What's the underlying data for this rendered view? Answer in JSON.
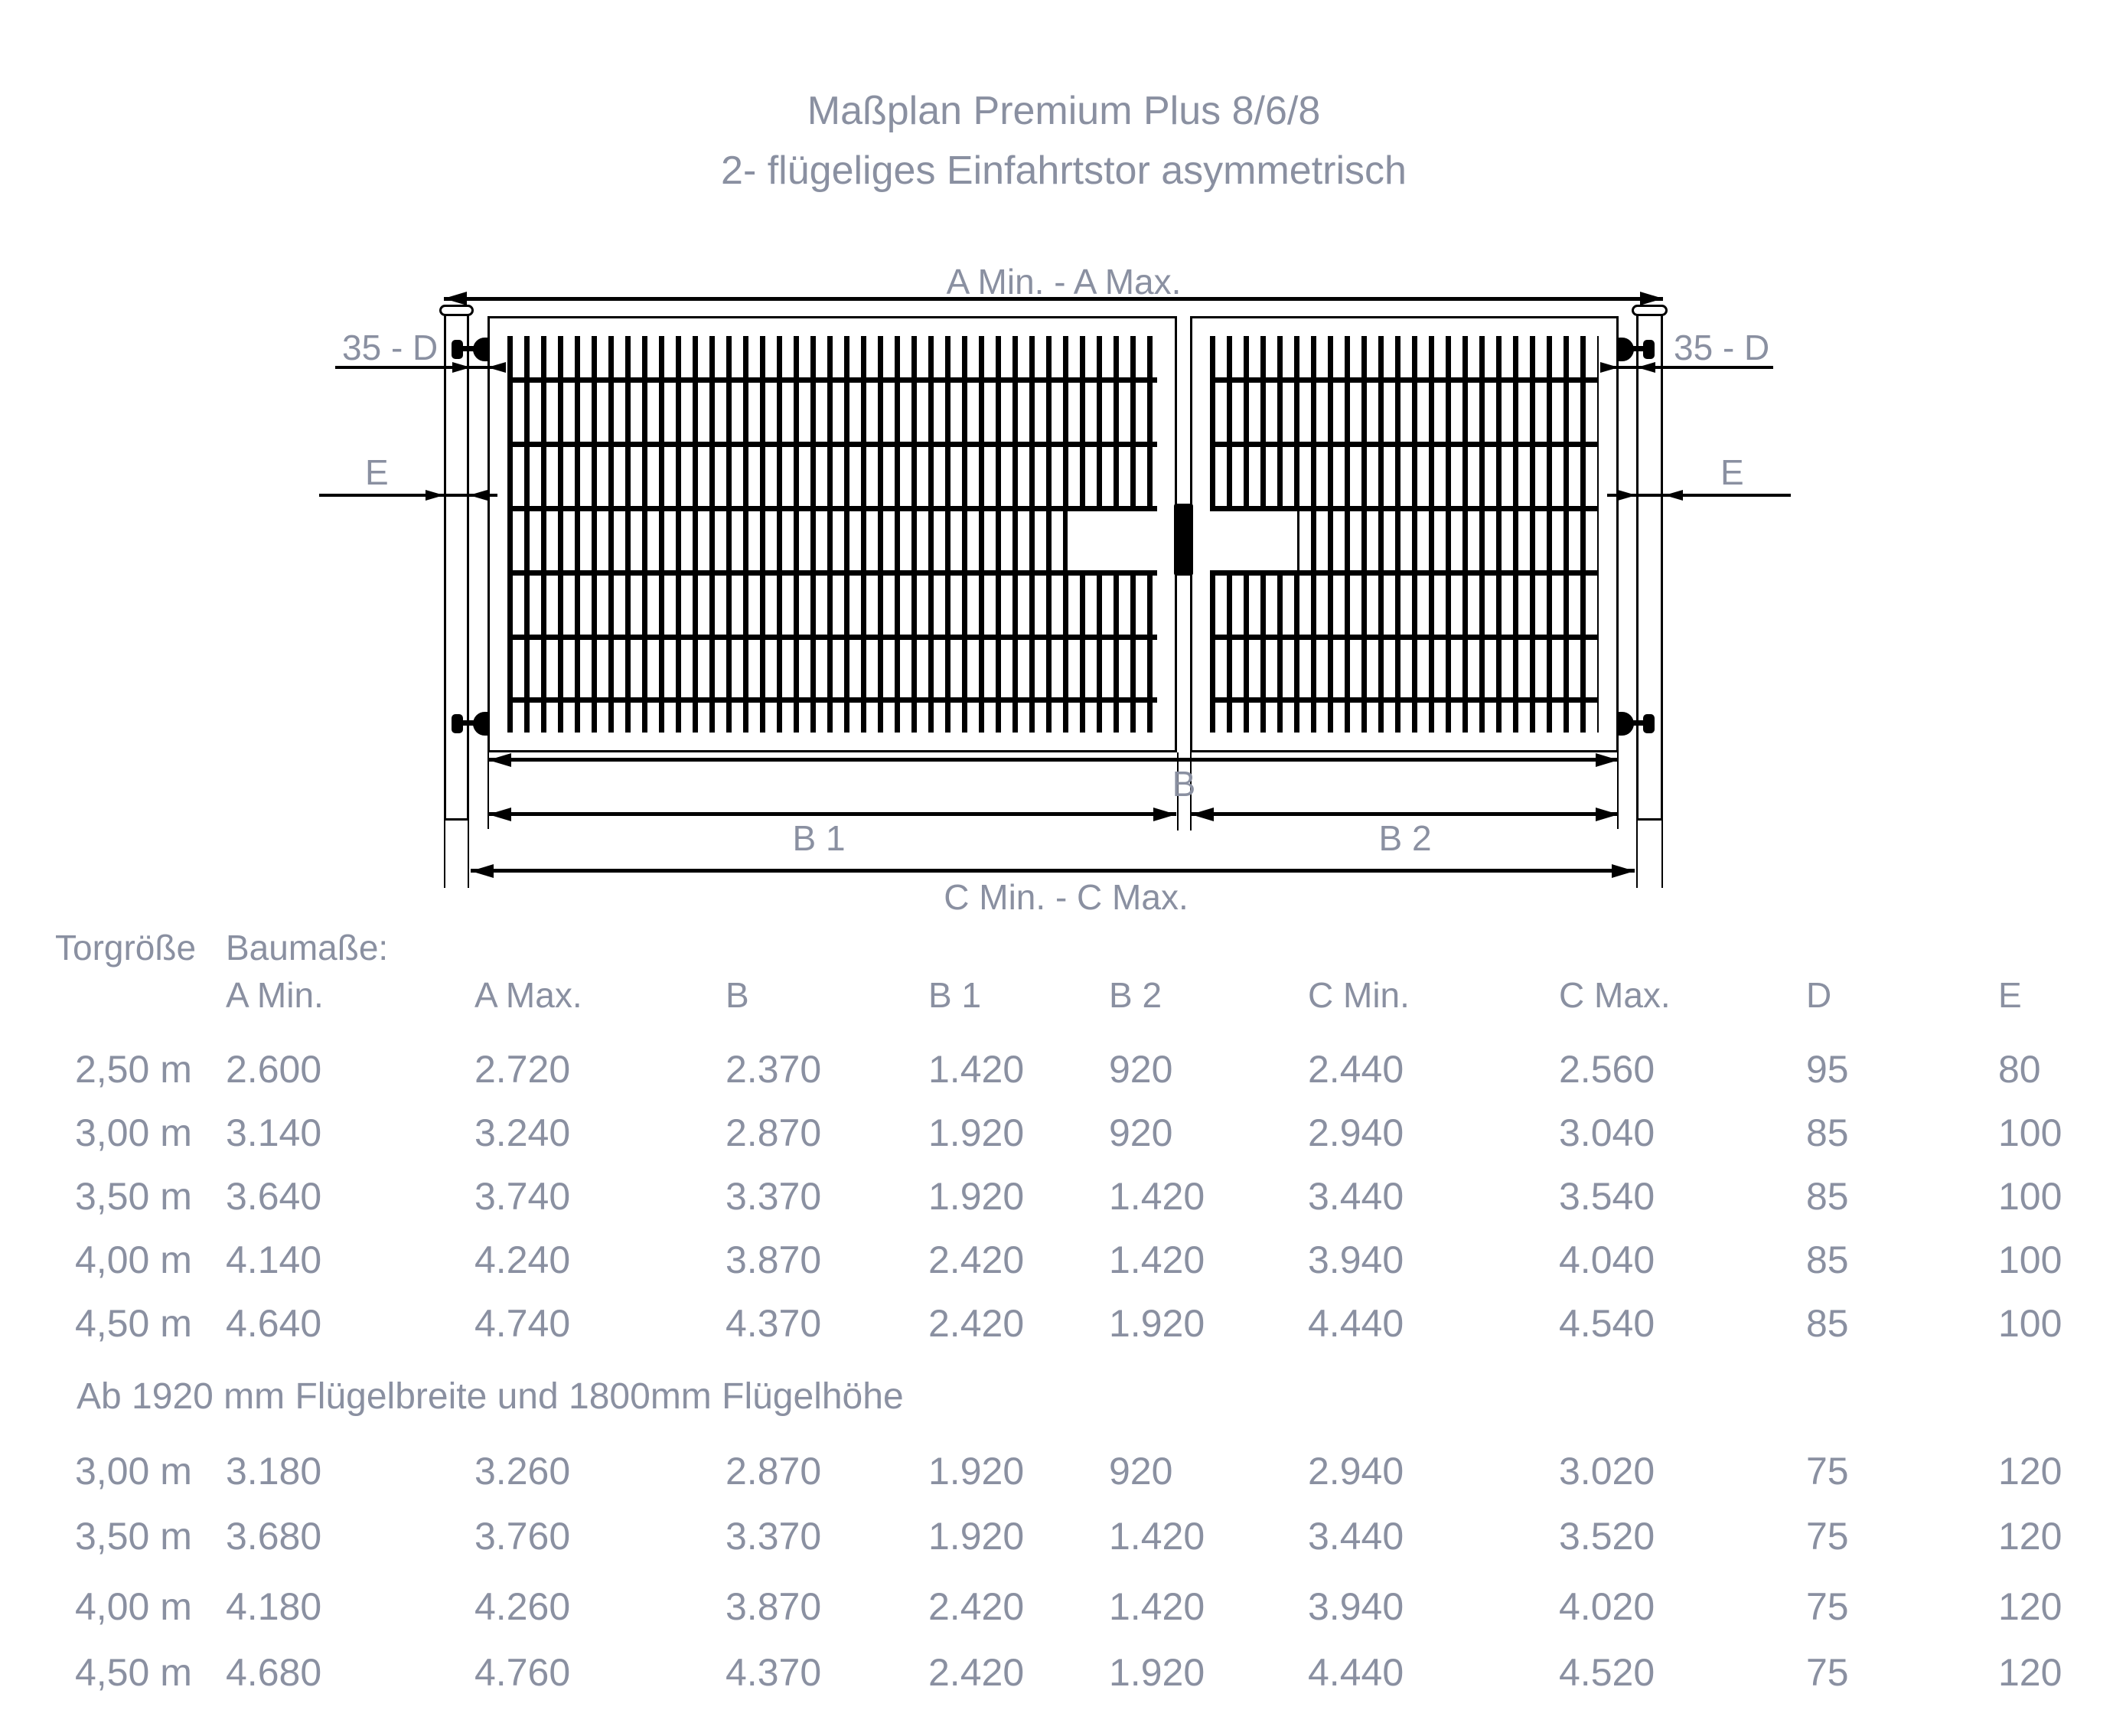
{
  "title": {
    "line1": "Maßplan Premium Plus 8/6/8",
    "line2": "2- flügeliges Einfahrtstor asymmetrisch"
  },
  "diagram": {
    "labels": {
      "a_span": "A Min. - A Max.",
      "hinge_left": "35 - D",
      "hinge_right": "35 - D",
      "post_left": "E",
      "post_right": "E",
      "b": "B",
      "b1": "B 1",
      "b2": "B 2",
      "c_span": "C Min. - C Max."
    }
  },
  "table": {
    "group_headers": {
      "size": "Torgröße",
      "dims": "Baumaße:"
    },
    "columns": [
      "A Min.",
      "A Max.",
      "B",
      "B 1",
      "B 2",
      "C Min.",
      "C Max.",
      "D",
      "E"
    ],
    "block1": [
      [
        "2,50 m",
        "2.600",
        "2.720",
        "2.370",
        "1.420",
        "920",
        "2.440",
        "2.560",
        "95",
        "80"
      ],
      [
        "3,00 m",
        "3.140",
        "3.240",
        "2.870",
        "1.920",
        "920",
        "2.940",
        "3.040",
        "85",
        "100"
      ],
      [
        "3,50 m",
        "3.640",
        "3.740",
        "3.370",
        "1.920",
        "1.420",
        "3.440",
        "3.540",
        "85",
        "100"
      ],
      [
        "4,00 m",
        "4.140",
        "4.240",
        "3.870",
        "2.420",
        "1.420",
        "3.940",
        "4.040",
        "85",
        "100"
      ],
      [
        "4,50 m",
        "4.640",
        "4.740",
        "4.370",
        "2.420",
        "1.920",
        "4.440",
        "4.540",
        "85",
        "100"
      ]
    ],
    "note": "Ab 1920 mm Flügelbreite und 1800mm Flügelhöhe",
    "block2": [
      [
        "3,00 m",
        "3.180",
        "3.260",
        "2.870",
        "1.920",
        "920",
        "2.940",
        "3.020",
        "75",
        "120"
      ],
      [
        "3,50 m",
        "3.680",
        "3.760",
        "3.370",
        "1.920",
        "1.420",
        "3.440",
        "3.520",
        "75",
        "120"
      ],
      [
        "4,00 m",
        "4.180",
        "4.260",
        "3.870",
        "2.420",
        "1.420",
        "3.940",
        "4.020",
        "75",
        "120"
      ],
      [
        "4,50 m",
        "4.680",
        "4.760",
        "4.370",
        "2.420",
        "1.920",
        "4.440",
        "4.520",
        "75",
        "120"
      ]
    ]
  },
  "colors": {
    "text": "#8a90a1",
    "ink": "#000000"
  }
}
